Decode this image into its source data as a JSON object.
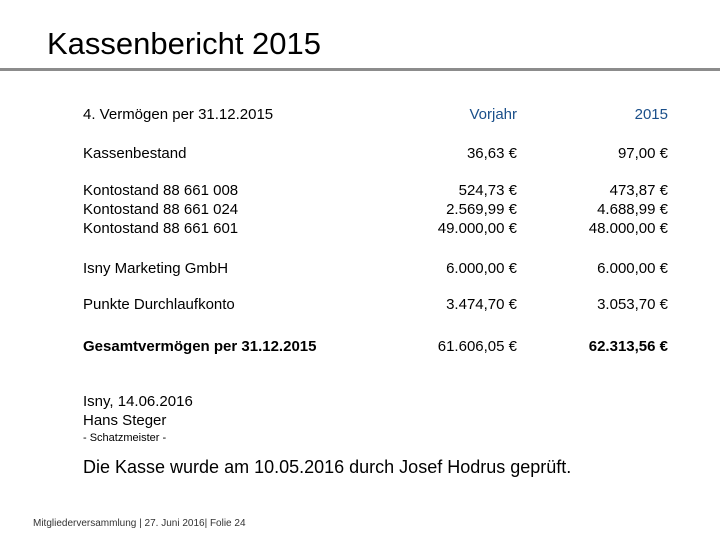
{
  "header": {
    "title": "Kassenbericht 2015"
  },
  "table": {
    "columns": [
      "4. Vermögen per 31.12.2015",
      "Vorjahr",
      "2015"
    ],
    "rows": [
      [
        "Kassenbestand",
        "36,63 €",
        "97,00 €"
      ],
      [
        "Kontostand 88 661 008",
        "524,73 €",
        "473,87 €"
      ],
      [
        "Kontostand 88 661 024",
        "2.569,99 €",
        "4.688,99 €"
      ],
      [
        "Kontostand 88 661 601",
        "49.000,00 €",
        "48.000,00 €"
      ],
      [
        "Isny Marketing GmbH",
        "6.000,00 €",
        "6.000,00 €"
      ],
      [
        "Punkte Durchlaufkonto",
        "3.474,70 €",
        "3.053,70 €"
      ],
      [
        "Gesamtvermögen per 31.12.2015",
        "61.606,05 €",
        "62.313,56 €"
      ]
    ]
  },
  "signature": {
    "place_date": "Isny, 14.06.2016",
    "name": "Hans Steger",
    "role": "- Schatzmeister -"
  },
  "audit_note": "Die Kasse wurde am 10.05.2016 durch Josef Hodrus geprüft.",
  "footer": "Mitgliederversammlung | 27. Juni 2016| Folie 24"
}
